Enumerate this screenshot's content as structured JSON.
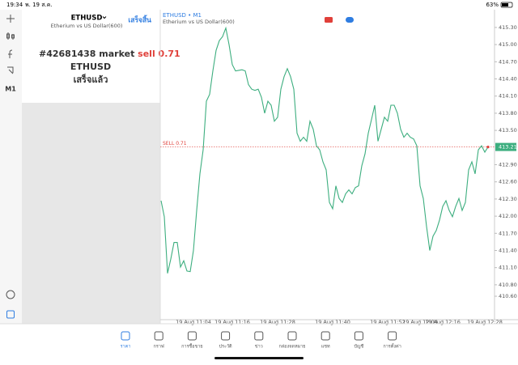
{
  "status_bar": {
    "time": "19:34",
    "date": "พ. 19 ส.ค.",
    "battery": "63%"
  },
  "toolbar": {
    "timeframe": "M1"
  },
  "panel": {
    "symbol": "ETHUSD",
    "description": "Etherium vs US Dollar(600)",
    "done_button": "เสร็จสิ้น",
    "order": {
      "text": "#42681438 market",
      "side": "sell 0.71",
      "symbol": "ETHUSD",
      "status": "เสร็จแล้ว"
    }
  },
  "chart": {
    "type": "line",
    "title": "ETHUSD • M1",
    "subtitle": "Etherium vs US Dollar(600)",
    "color": "#3dae7f",
    "categories": [
      null,
      null,
      null,
      null,
      null,
      null,
      null,
      null,
      null,
      null,
      "19 Aug 11:04",
      null,
      null,
      null,
      null,
      null,
      null,
      null,
      null,
      null,
      null,
      null,
      "19 Aug 11:16",
      null,
      null,
      null,
      null,
      null,
      null,
      null,
      null,
      null,
      null,
      null,
      null,
      null,
      "19 Aug 11:28",
      null,
      null,
      null,
      null,
      null,
      null,
      null,
      null,
      null,
      null,
      null,
      null,
      null,
      null,
      null,
      null,
      "19 Aug 11:40",
      null,
      null,
      null,
      null,
      null,
      null,
      null,
      null,
      null,
      null,
      null,
      null,
      null,
      null,
      null,
      null,
      "19 Aug 11:52",
      null,
      null,
      null,
      null,
      null,
      null,
      null,
      null,
      null,
      "19 Aug 12:04",
      null,
      null,
      null,
      null,
      null,
      null,
      "19 Aug 12:16",
      null,
      null,
      null,
      null,
      null,
      null,
      null,
      null,
      null,
      null,
      null,
      null,
      "19 Aug 12:28",
      null
    ],
    "values": [
      412.27,
      411.99,
      411.0,
      411.25,
      411.54,
      411.54,
      411.11,
      411.22,
      411.04,
      411.03,
      411.4,
      412.1,
      412.74,
      413.16,
      414.01,
      414.13,
      414.54,
      414.9,
      415.07,
      415.14,
      415.29,
      415.0,
      414.65,
      414.54,
      414.55,
      414.56,
      414.54,
      414.3,
      414.22,
      414.2,
      414.22,
      414.08,
      413.8,
      414.01,
      413.94,
      413.66,
      413.73,
      414.22,
      414.44,
      414.58,
      414.44,
      414.22,
      413.45,
      413.31,
      413.38,
      413.31,
      413.66,
      413.52,
      413.23,
      413.16,
      412.95,
      412.81,
      412.24,
      412.13,
      412.53,
      412.31,
      412.24,
      412.39,
      412.46,
      412.39,
      412.5,
      412.53,
      412.88,
      413.09,
      413.45,
      413.69,
      413.94,
      413.31,
      413.52,
      413.73,
      413.66,
      413.94,
      413.94,
      413.8,
      413.52,
      413.38,
      413.45,
      413.38,
      413.35,
      413.23,
      412.53,
      412.31,
      411.82,
      411.4,
      411.65,
      411.75,
      411.93,
      412.17,
      412.27,
      412.1,
      411.99,
      412.17,
      412.31,
      412.1,
      412.24,
      412.81,
      412.95,
      412.74,
      413.16,
      413.23,
      413.12,
      413.21
    ],
    "ylim": [
      410.19,
      415.61
    ],
    "yticks": [
      {
        "value": 415.3,
        "label": "415.30"
      },
      {
        "value": 415.0,
        "label": "415.00"
      },
      {
        "value": 414.7,
        "label": "414.70"
      },
      {
        "value": 414.4,
        "label": "414.40"
      },
      {
        "value": 414.1,
        "label": "414.10"
      },
      {
        "value": 413.8,
        "label": "413.80"
      },
      {
        "value": 413.5,
        "label": "413.50"
      },
      {
        "value": 412.9,
        "label": "412.90"
      },
      {
        "value": 412.6,
        "label": "412.60"
      },
      {
        "value": 412.3,
        "label": "412.30"
      },
      {
        "value": 412.0,
        "label": "412.00"
      },
      {
        "value": 411.7,
        "label": "411.70"
      },
      {
        "value": 411.4,
        "label": "411.40"
      },
      {
        "value": 411.1,
        "label": "411.10"
      },
      {
        "value": 410.8,
        "label": "410.80"
      },
      {
        "value": 410.6,
        "label": "410.60"
      }
    ],
    "sell_line": {
      "text": "SELL 0.71",
      "value": 413.21,
      "value_label": "413.21",
      "color": "#e0403a"
    }
  },
  "tab_bar": {
    "active": 0,
    "tabs": [
      "ราคา",
      "กราฟ",
      "การซื้อขาย",
      "ประวัติ",
      "ข่าว",
      "กล่องจดหมาย",
      "แชท",
      "บัญชี",
      "การตั้งค่า"
    ]
  }
}
